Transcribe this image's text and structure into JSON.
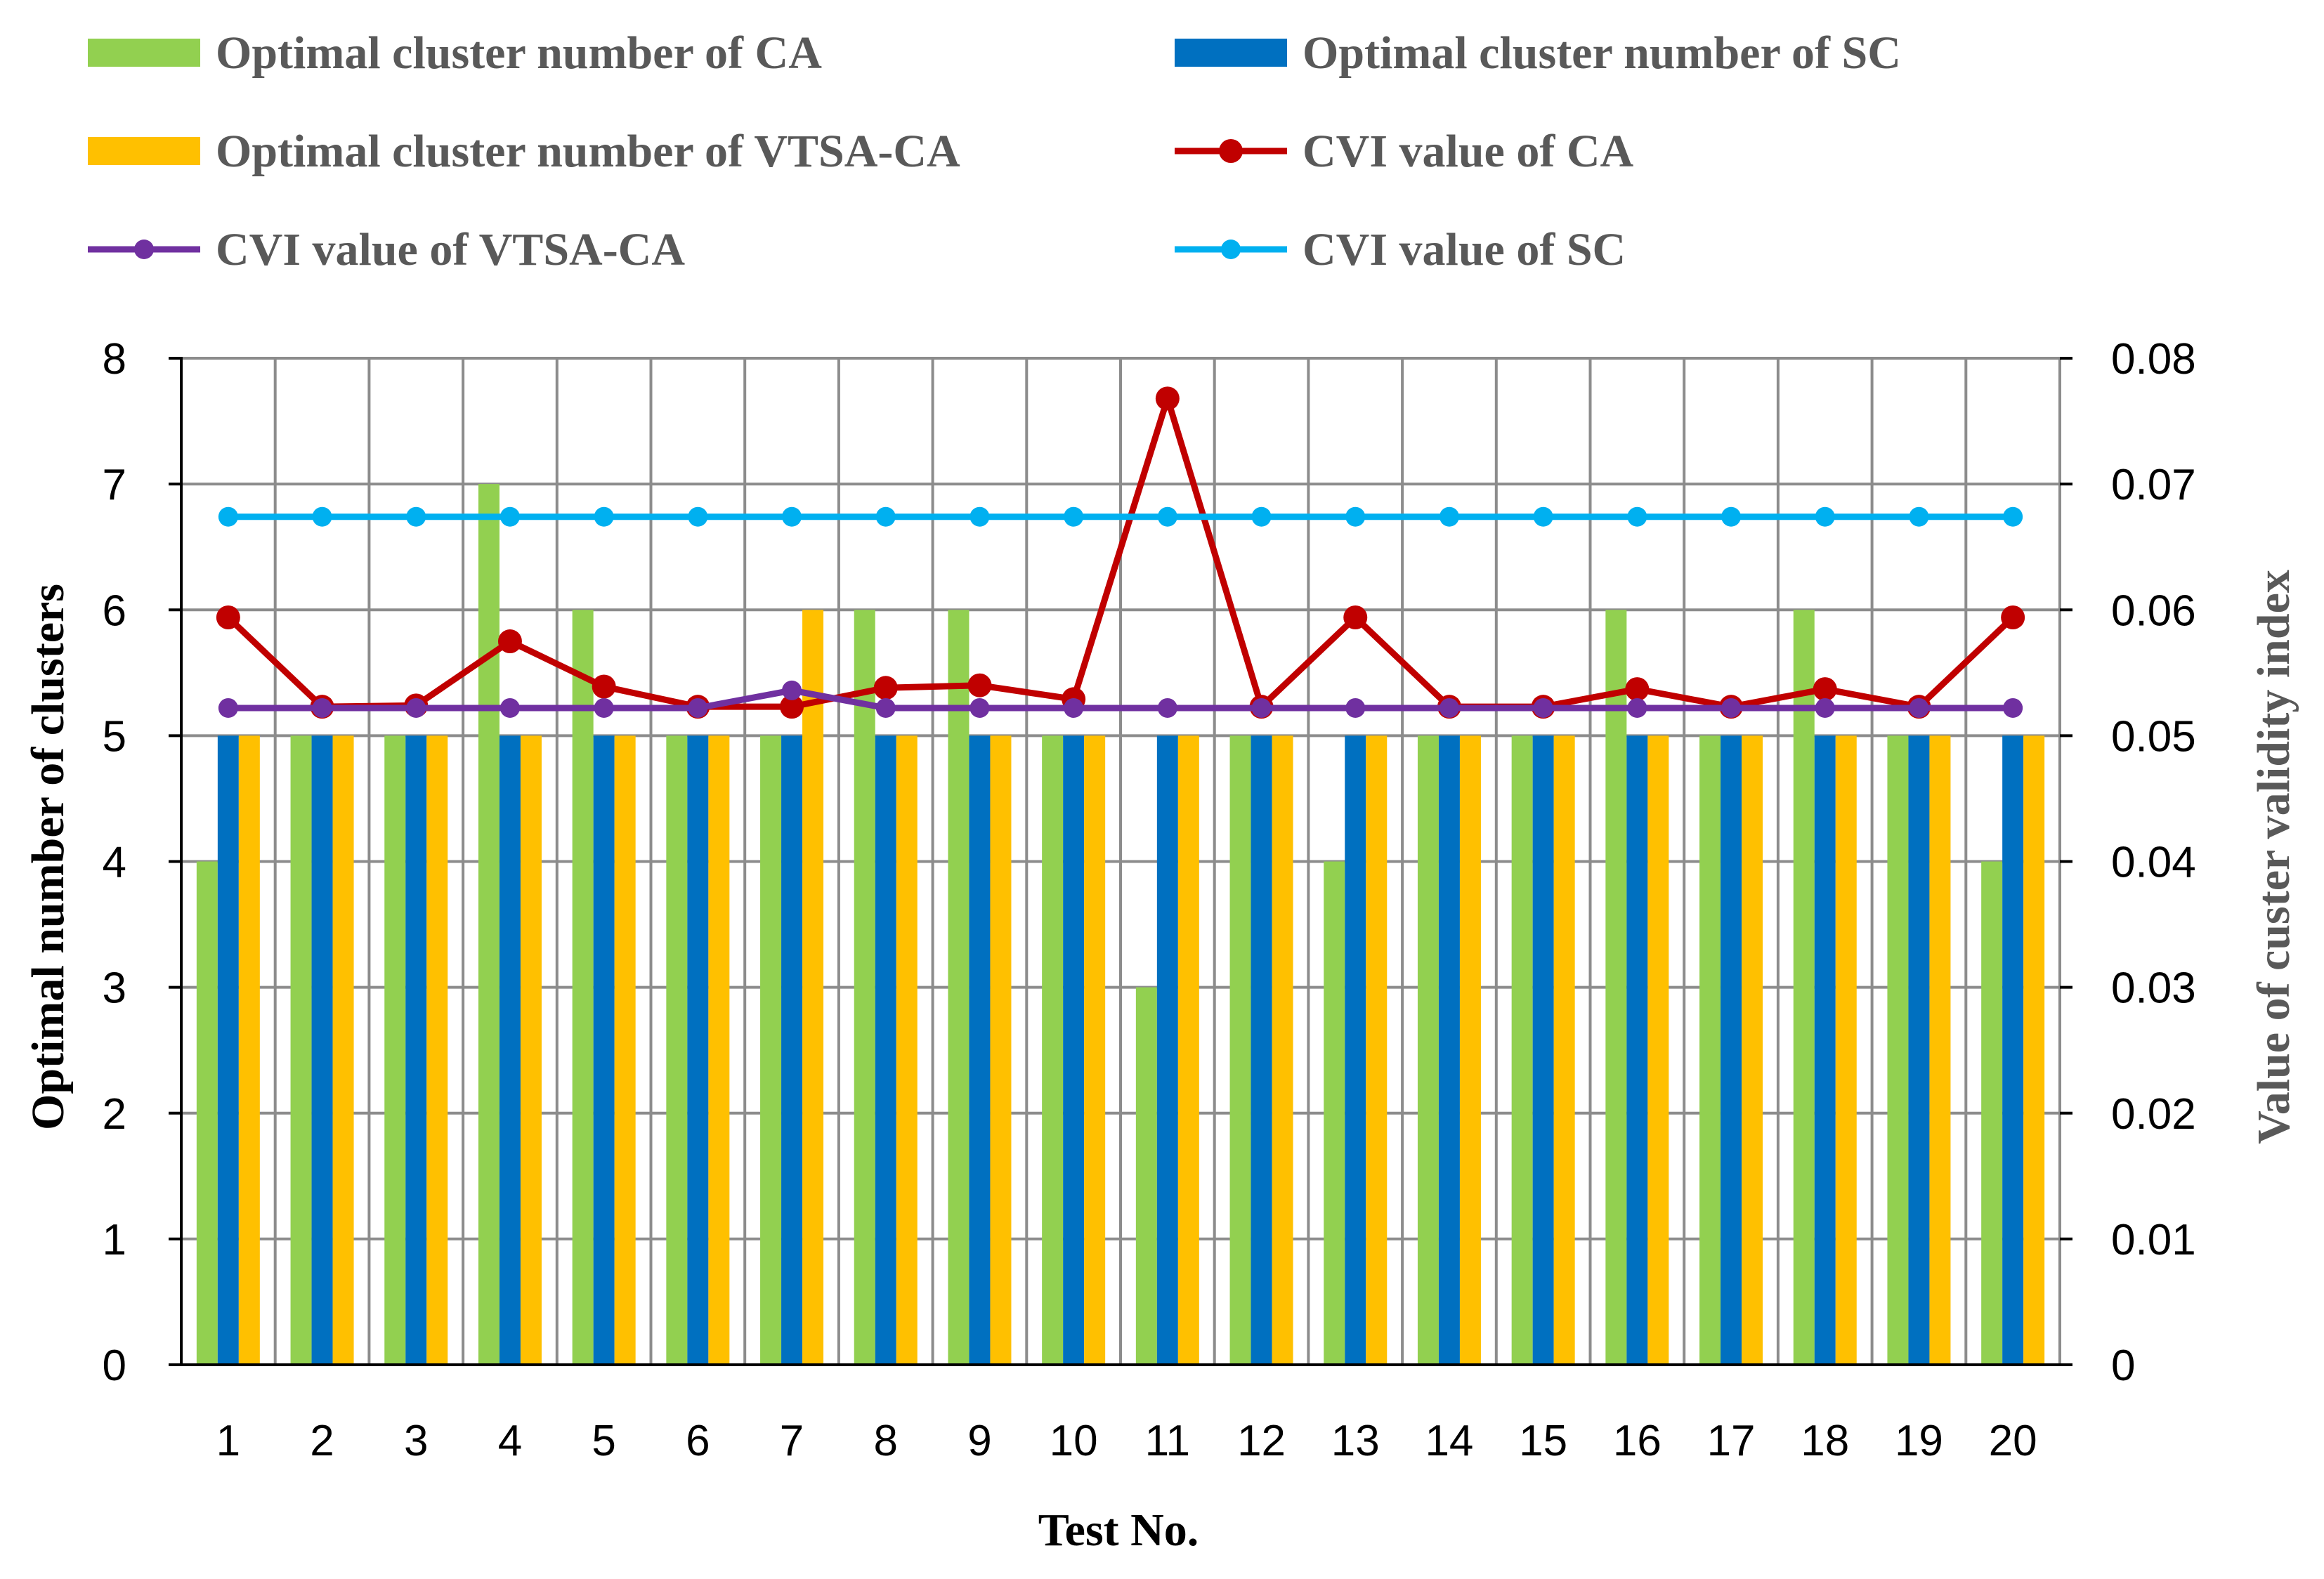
{
  "chart_data": {
    "type": "bar",
    "title": "",
    "xlabel": "Test No.",
    "ylabel": "Optimal number of clusters",
    "y2label": "Value of custer validity index",
    "ylim": [
      0,
      8
    ],
    "y2lim": [
      0,
      0.08
    ],
    "yticks": [
      "0",
      "1",
      "2",
      "3",
      "4",
      "5",
      "6",
      "7",
      "8"
    ],
    "y2ticks": [
      "0",
      "0.01",
      "0.02",
      "0.03",
      "0.04",
      "0.05",
      "0.06",
      "0.07",
      "0.08"
    ],
    "grid": true,
    "legend_position": "top",
    "categories": [
      "1",
      "2",
      "3",
      "4",
      "5",
      "6",
      "7",
      "8",
      "9",
      "10",
      "11",
      "12",
      "13",
      "14",
      "15",
      "16",
      "17",
      "18",
      "19",
      "20"
    ],
    "series": [
      {
        "name": "Optimal cluster number of CA",
        "kind": "bar",
        "axis": "left",
        "color": "#92D050",
        "values": [
          4,
          5,
          5,
          7,
          6,
          5,
          5,
          6,
          6,
          5,
          3,
          5,
          4,
          5,
          5,
          6,
          5,
          6,
          5,
          4
        ]
      },
      {
        "name": "Optimal cluster number of SC",
        "kind": "bar",
        "axis": "left",
        "color": "#0070C0",
        "values": [
          5,
          5,
          5,
          5,
          5,
          5,
          5,
          5,
          5,
          5,
          5,
          5,
          5,
          5,
          5,
          5,
          5,
          5,
          5,
          5
        ]
      },
      {
        "name": "Optimal cluster number of VTSA-CA",
        "kind": "bar",
        "axis": "left",
        "color": "#FFC000",
        "values": [
          5,
          5,
          5,
          5,
          5,
          5,
          6,
          5,
          5,
          5,
          5,
          5,
          5,
          5,
          5,
          5,
          5,
          5,
          5,
          5
        ]
      },
      {
        "name": "CVI value of CA",
        "kind": "line",
        "axis": "right",
        "color": "#C00000",
        "values": [
          0.0594,
          0.0523,
          0.0524,
          0.0575,
          0.0539,
          0.0523,
          0.0523,
          0.0538,
          0.054,
          0.0529,
          0.0768,
          0.0523,
          0.0594,
          0.0523,
          0.0523,
          0.0537,
          0.0523,
          0.0537,
          0.0523,
          0.0594
        ]
      },
      {
        "name": "CVI value of VTSA-CA",
        "kind": "line",
        "axis": "right",
        "color": "#7030A0",
        "values": [
          0.0522,
          0.0522,
          0.0522,
          0.0522,
          0.0522,
          0.0522,
          0.0536,
          0.0522,
          0.0522,
          0.0522,
          0.0522,
          0.0522,
          0.0522,
          0.0522,
          0.0522,
          0.0522,
          0.0522,
          0.0522,
          0.0522,
          0.0522
        ]
      },
      {
        "name": "CVI value of SC",
        "kind": "line",
        "axis": "right",
        "color": "#00B0F0",
        "values": [
          0.0674,
          0.0674,
          0.0674,
          0.0674,
          0.0674,
          0.0674,
          0.0674,
          0.0674,
          0.0674,
          0.0674,
          0.0674,
          0.0674,
          0.0674,
          0.0674,
          0.0674,
          0.0674,
          0.0674,
          0.0674,
          0.0674,
          0.0674
        ]
      }
    ]
  }
}
